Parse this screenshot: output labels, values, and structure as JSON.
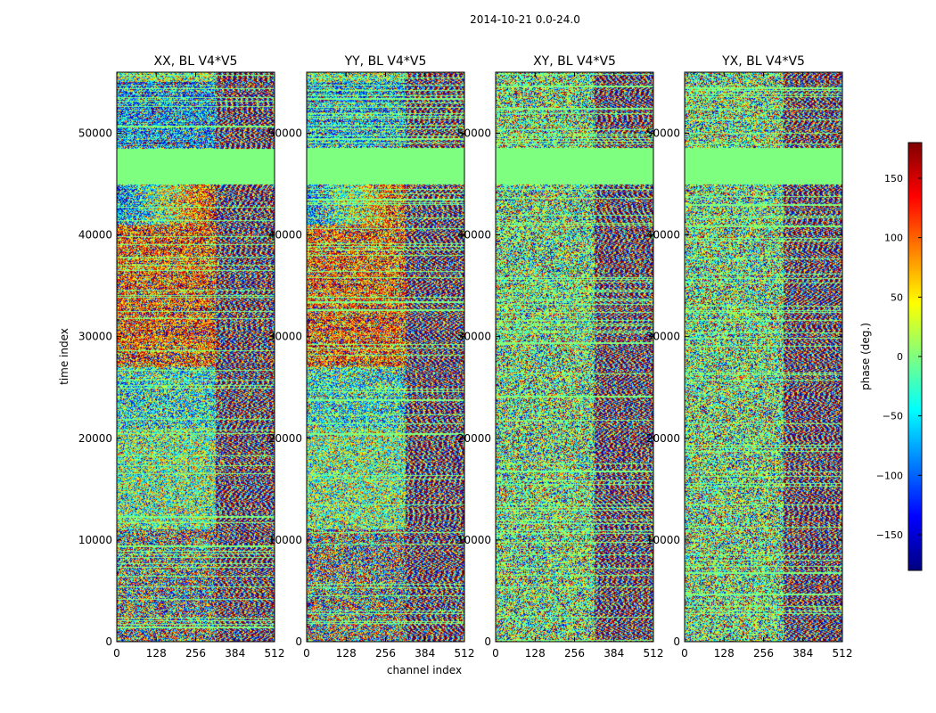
{
  "chart_data": {
    "type": "heatmap",
    "suptitle": "2014-10-21 0.0-24.0",
    "xlabel": "channel index",
    "ylabel": "time index",
    "xlim": [
      0,
      512
    ],
    "ylim": [
      0,
      56000
    ],
    "x_ticks": [
      0,
      128,
      256,
      384,
      512
    ],
    "y_ticks": [
      0,
      10000,
      20000,
      30000,
      40000,
      50000
    ],
    "flagged_band": [
      45000,
      48500
    ],
    "panels": [
      {
        "title": "XX, BL V4*V5",
        "mode": "parallel",
        "seed": 11
      },
      {
        "title": "YY, BL V4*V5",
        "mode": "parallel",
        "seed": 23
      },
      {
        "title": "XY, BL V4*V5",
        "mode": "cross",
        "seed": 37
      },
      {
        "title": "YX, BL V4*V5",
        "mode": "cross",
        "seed": 53
      }
    ],
    "colorbar": {
      "label": "phase (deg.)",
      "range": [
        -180,
        180
      ],
      "ticks": [
        150,
        100,
        50,
        0,
        -50,
        -100,
        -150
      ],
      "tick_labels": [
        "150",
        "100",
        "50",
        "0",
        "−50",
        "−100",
        "−150"
      ],
      "colormap": "jet"
    }
  },
  "colors": {
    "background": "#ffffff",
    "flagged": "#7fff7f",
    "axis": "#000000"
  }
}
